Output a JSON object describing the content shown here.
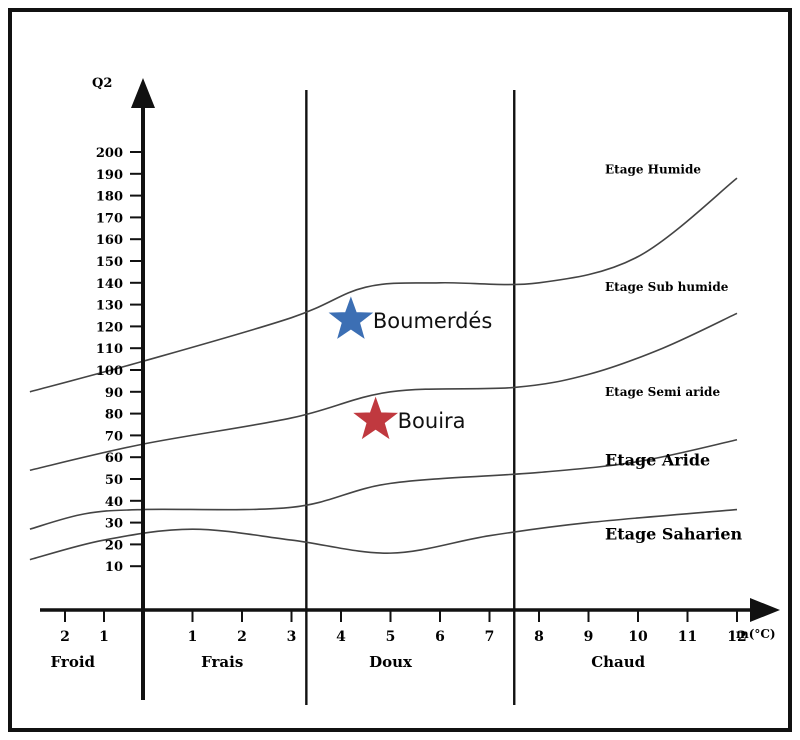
{
  "chart_data": {
    "type": "line",
    "title": "",
    "ylabel": "Q2",
    "xlabel": "m(°C)",
    "ylim": [
      0,
      200
    ],
    "yticks": [
      "10",
      "20",
      "30",
      "40",
      "50",
      "60",
      "70",
      "80",
      "90",
      "100",
      "110",
      "120",
      "130",
      "140",
      "150",
      "160",
      "170",
      "180",
      "190",
      "200"
    ],
    "xticks": [
      {
        "v": -2,
        "label": "2"
      },
      {
        "v": -1,
        "label": "1"
      },
      {
        "v": 1,
        "label": "1"
      },
      {
        "v": 2,
        "label": "2"
      },
      {
        "v": 3,
        "label": "3"
      },
      {
        "v": 4,
        "label": "4"
      },
      {
        "v": 5,
        "label": "5"
      },
      {
        "v": 6,
        "label": "6"
      },
      {
        "v": 7,
        "label": "7"
      },
      {
        "v": 8,
        "label": "8"
      },
      {
        "v": 9,
        "label": "9"
      },
      {
        "v": 10,
        "label": "10"
      },
      {
        "v": 11,
        "label": "11"
      },
      {
        "v": 12,
        "label": "12"
      }
    ],
    "dividers": [
      3.3,
      7.5
    ],
    "zones": [
      {
        "label": "Froid",
        "x": -1.8
      },
      {
        "label": "Frais",
        "x": 1.6
      },
      {
        "label": "Doux",
        "x": 5.0
      },
      {
        "label": "Chaud",
        "x": 9.6
      }
    ],
    "boundaries": [
      {
        "points": [
          [
            -2.9,
            90
          ],
          [
            0,
            104
          ],
          [
            3,
            124
          ],
          [
            4.5,
            138
          ],
          [
            6,
            140
          ],
          [
            8,
            140
          ],
          [
            10,
            152
          ],
          [
            12,
            188
          ]
        ]
      },
      {
        "points": [
          [
            -2.9,
            54
          ],
          [
            0,
            66
          ],
          [
            3,
            78
          ],
          [
            5,
            90
          ],
          [
            7.5,
            92
          ],
          [
            9,
            98
          ],
          [
            10.5,
            110
          ],
          [
            12,
            126
          ]
        ]
      },
      {
        "points": [
          [
            -2.9,
            27
          ],
          [
            -1.5,
            34
          ],
          [
            0,
            36
          ],
          [
            3,
            37
          ],
          [
            5,
            48
          ],
          [
            8,
            53
          ],
          [
            10,
            58
          ],
          [
            12,
            68
          ]
        ]
      },
      {
        "points": [
          [
            -2.9,
            13
          ],
          [
            -1,
            22
          ],
          [
            1,
            27
          ],
          [
            3,
            22
          ],
          [
            5,
            16
          ],
          [
            7,
            24
          ],
          [
            9,
            30
          ],
          [
            12,
            36
          ]
        ]
      }
    ],
    "stages": [
      {
        "label": "Etage Humide",
        "y": 192,
        "bold": false
      },
      {
        "label": "Etage Sub humide",
        "y": 138,
        "bold": false
      },
      {
        "label": "Etage Semi aride",
        "y": 90,
        "bold": false
      },
      {
        "label": "Etage Aride",
        "y": 58,
        "bold": true
      },
      {
        "label": "Etage Saharien",
        "y": 24,
        "bold": true
      }
    ],
    "stations": [
      {
        "name": "Boumerdés",
        "x": 4.2,
        "y": 123,
        "color": "#3c6fb4"
      },
      {
        "name": "Bouira",
        "x": 4.7,
        "y": 77,
        "color": "#c0393f"
      }
    ]
  }
}
